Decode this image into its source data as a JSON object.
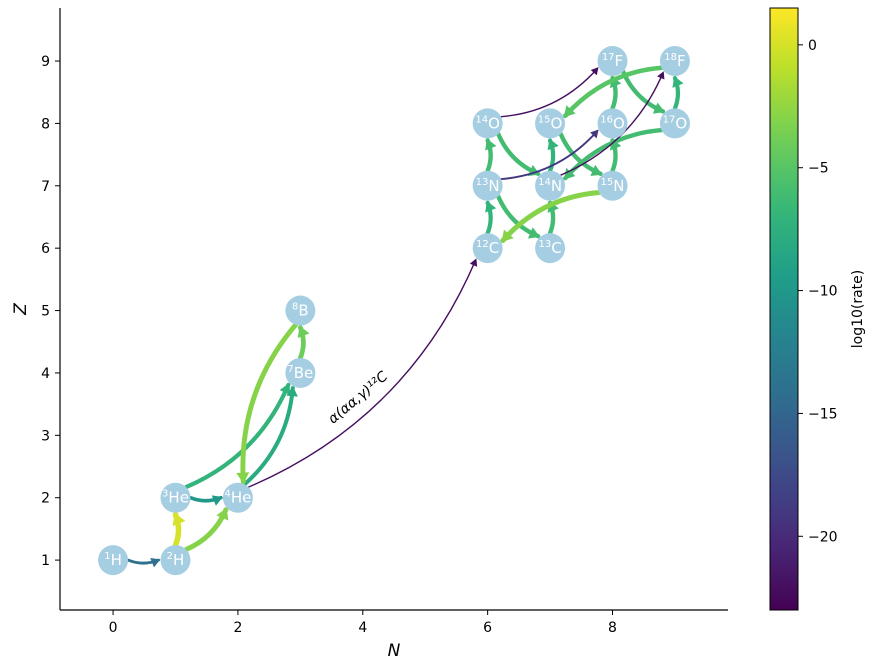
{
  "chart_data": {
    "type": "network",
    "xlabel": "N",
    "ylabel": "Z",
    "xlim": [
      -0.85,
      9.85
    ],
    "ylim": [
      0.2,
      9.85
    ],
    "xticks": [
      0,
      2,
      4,
      6,
      8
    ],
    "yticks": [
      1,
      2,
      3,
      4,
      5,
      6,
      7,
      8,
      9
    ],
    "colorbar": {
      "label": "log10(rate)",
      "range": [
        -23,
        1.5
      ],
      "ticks": [
        0,
        -5,
        -10,
        -15,
        -20
      ],
      "tick_labels": [
        "0",
        "−5",
        "−10",
        "−15",
        "−20"
      ],
      "colormap": "viridis"
    },
    "nodes": [
      {
        "id": "H1",
        "mass": "1",
        "symbol": "H",
        "n": 0,
        "z": 1
      },
      {
        "id": "H2",
        "mass": "2",
        "symbol": "H",
        "n": 1,
        "z": 1
      },
      {
        "id": "He3",
        "mass": "3",
        "symbol": "He",
        "n": 1,
        "z": 2
      },
      {
        "id": "He4",
        "mass": "4",
        "symbol": "He",
        "n": 2,
        "z": 2
      },
      {
        "id": "Be7",
        "mass": "7",
        "symbol": "Be",
        "n": 3,
        "z": 4
      },
      {
        "id": "B8",
        "mass": "8",
        "symbol": "B",
        "n": 3,
        "z": 5
      },
      {
        "id": "C12",
        "mass": "12",
        "symbol": "C",
        "n": 6,
        "z": 6
      },
      {
        "id": "C13",
        "mass": "13",
        "symbol": "C",
        "n": 7,
        "z": 6
      },
      {
        "id": "N13",
        "mass": "13",
        "symbol": "N",
        "n": 6,
        "z": 7
      },
      {
        "id": "N14",
        "mass": "14",
        "symbol": "N",
        "n": 7,
        "z": 7
      },
      {
        "id": "N15",
        "mass": "15",
        "symbol": "N",
        "n": 8,
        "z": 7
      },
      {
        "id": "O14",
        "mass": "14",
        "symbol": "O",
        "n": 6,
        "z": 8
      },
      {
        "id": "O15",
        "mass": "15",
        "symbol": "O",
        "n": 7,
        "z": 8
      },
      {
        "id": "O16",
        "mass": "16",
        "symbol": "O",
        "n": 8,
        "z": 8
      },
      {
        "id": "O17",
        "mass": "17",
        "symbol": "O",
        "n": 9,
        "z": 8
      },
      {
        "id": "F17",
        "mass": "17",
        "symbol": "F",
        "n": 8,
        "z": 9
      },
      {
        "id": "F18",
        "mass": "18",
        "symbol": "F",
        "n": 9,
        "z": 9
      }
    ],
    "links": [
      {
        "from": "H1",
        "to": "H2",
        "log_rate": -14,
        "bend": 0.1
      },
      {
        "from": "H2",
        "to": "He3",
        "log_rate": 0,
        "bend": 0.1
      },
      {
        "from": "H2",
        "to": "He4",
        "log_rate": -3,
        "bend": 0.1
      },
      {
        "from": "He3",
        "to": "He4",
        "log_rate": -10,
        "bend": 0.1
      },
      {
        "from": "He3",
        "to": "Be7",
        "log_rate": -7,
        "bend": 0.1
      },
      {
        "from": "He4",
        "to": "Be7",
        "log_rate": -8,
        "bend": 0.1
      },
      {
        "from": "Be7",
        "to": "B8",
        "log_rate": -4,
        "bend": 0.1
      },
      {
        "from": "B8",
        "to": "He4",
        "log_rate": -3,
        "bend": 0.1
      },
      {
        "from": "He4",
        "to": "C12",
        "log_rate": -22,
        "bend": 0.1
      },
      {
        "from": "C12",
        "to": "N13",
        "log_rate": -7,
        "bend": 0.1
      },
      {
        "from": "N13",
        "to": "C13",
        "log_rate": -6,
        "bend": 0.1
      },
      {
        "from": "C13",
        "to": "N14",
        "log_rate": -6,
        "bend": 0.1
      },
      {
        "from": "N14",
        "to": "O15",
        "log_rate": -7,
        "bend": 0.1
      },
      {
        "from": "O15",
        "to": "N15",
        "log_rate": -6,
        "bend": 0.1
      },
      {
        "from": "N15",
        "to": "C12",
        "log_rate": -3,
        "bend": 0.1
      },
      {
        "from": "N15",
        "to": "O16",
        "log_rate": -6,
        "bend": 0.1
      },
      {
        "from": "O16",
        "to": "F17",
        "log_rate": -6,
        "bend": 0.1
      },
      {
        "from": "F17",
        "to": "O17",
        "log_rate": -6,
        "bend": 0.1
      },
      {
        "from": "O17",
        "to": "N14",
        "log_rate": -6,
        "bend": 0.1
      },
      {
        "from": "O17",
        "to": "F18",
        "log_rate": -7,
        "bend": 0.1
      },
      {
        "from": "F18",
        "to": "O15",
        "log_rate": -5,
        "bend": 0.1
      },
      {
        "from": "N13",
        "to": "O14",
        "log_rate": -6,
        "bend": 0.1
      },
      {
        "from": "O14",
        "to": "N14",
        "log_rate": -6,
        "bend": 0.1
      },
      {
        "from": "O14",
        "to": "F17",
        "log_rate": -22,
        "bend": 0.1
      },
      {
        "from": "N13",
        "to": "O16",
        "log_rate": -19,
        "bend": 0.1
      },
      {
        "from": "N14",
        "to": "F18",
        "log_rate": -22,
        "bend": 0.1
      }
    ],
    "annotation": {
      "text": "α(αα,γ)¹²C"
    }
  }
}
